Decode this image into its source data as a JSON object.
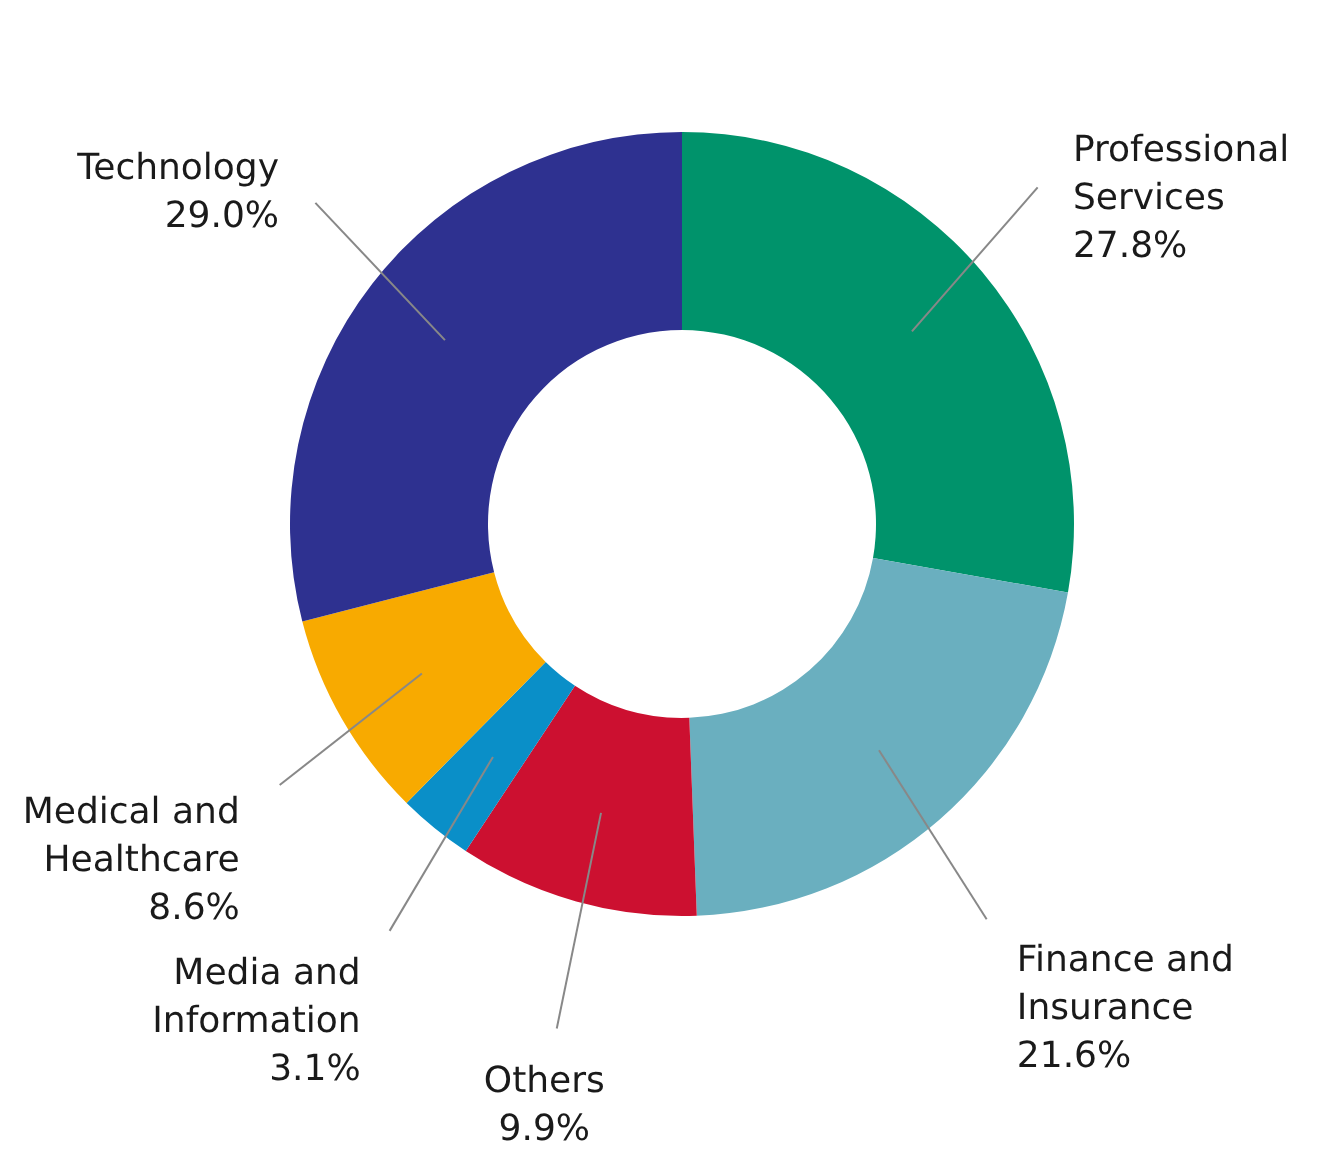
{
  "chart_data": {
    "type": "donut",
    "categories": [
      "Professional Services",
      "Finance and Insurance",
      "Others",
      "Media and Information",
      "Medical and Healthcare",
      "Technology"
    ],
    "values": [
      27.8,
      21.6,
      9.9,
      3.1,
      8.6,
      29.0
    ],
    "value_labels": [
      "27.8%",
      "21.6%",
      "9.9%",
      "3.1%",
      "8.6%",
      "29.0%"
    ],
    "colors": [
      "#00936b",
      "#6aafbf",
      "#cc1030",
      "#0a8fc8",
      "#f8aa00",
      "#2e3190"
    ]
  }
}
